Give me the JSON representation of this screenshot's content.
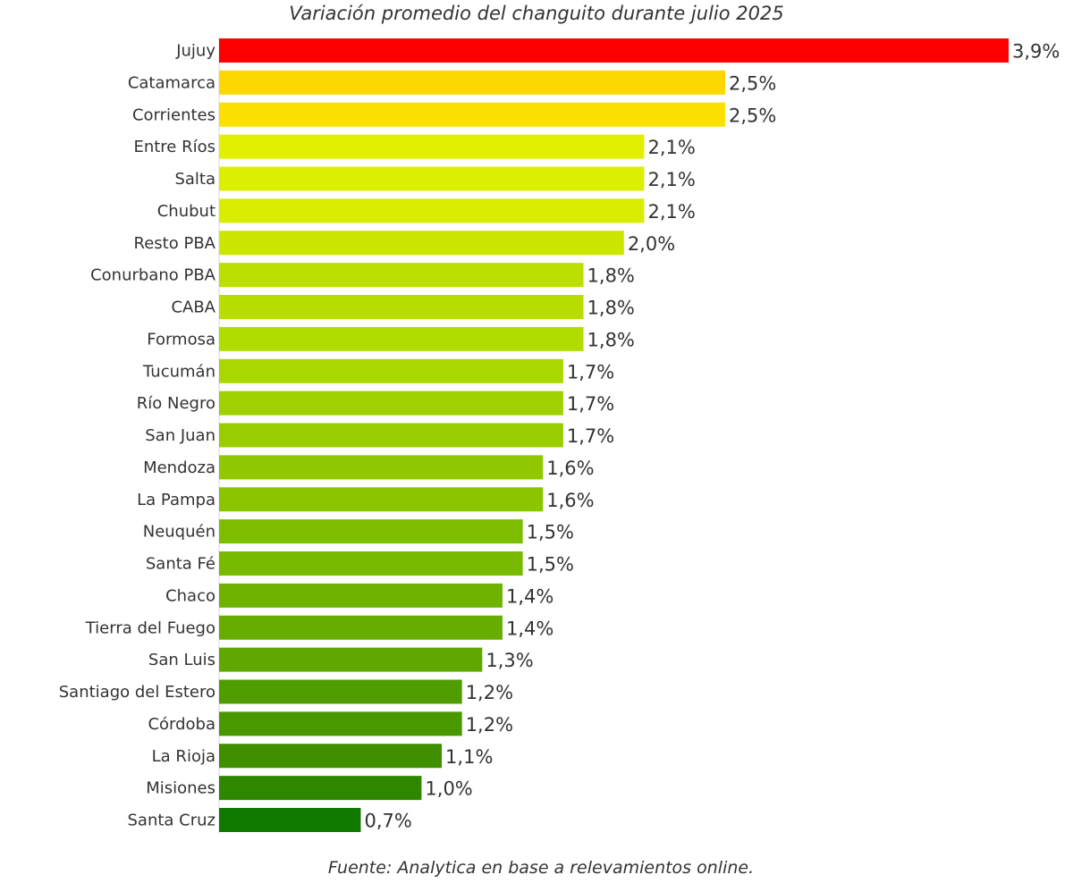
{
  "chart_data": {
    "type": "bar",
    "orientation": "horizontal",
    "title": "Variación promedio del changuito durante julio 2025",
    "source": "Fuente: Analytica en base a relevamientos online.",
    "xlim": [
      0,
      3.9
    ],
    "grid": false,
    "legend": "none",
    "categories": [
      "Jujuy",
      "Catamarca",
      "Corrientes",
      "Entre Ríos",
      "Salta",
      "Chubut",
      "Resto PBA",
      "Conurbano PBA",
      "CABA",
      "Formosa",
      "Tucumán",
      "Río Negro",
      "San Juan",
      "Mendoza",
      "La Pampa",
      "Neuquén",
      "Santa Fé",
      "Chaco",
      "Tierra del Fuego",
      "San Luis",
      "Santiago del Estero",
      "Córdoba",
      "La Rioja",
      "Misiones",
      "Santa Cruz"
    ],
    "values": [
      3.9,
      2.5,
      2.5,
      2.1,
      2.1,
      2.1,
      2.0,
      1.8,
      1.8,
      1.8,
      1.7,
      1.7,
      1.7,
      1.6,
      1.6,
      1.5,
      1.5,
      1.4,
      1.4,
      1.3,
      1.2,
      1.2,
      1.1,
      1.0,
      0.7
    ],
    "value_labels": [
      "3,9%",
      "2,5%",
      "2,5%",
      "2,1%",
      "2,1%",
      "2,1%",
      "2,0%",
      "1,8%",
      "1,8%",
      "1,8%",
      "1,7%",
      "1,7%",
      "1,7%",
      "1,6%",
      "1,6%",
      "1,5%",
      "1,5%",
      "1,4%",
      "1,4%",
      "1,3%",
      "1,2%",
      "1,2%",
      "1,1%",
      "1,0%",
      "0,7%"
    ],
    "colors": [
      "#fe0000",
      "#fdd800",
      "#fce100",
      "#e2ef00",
      "#dcef00",
      "#d8ed00",
      "#cbe700",
      "#bbe000",
      "#b7de00",
      "#b1dc00",
      "#a9d700",
      "#9fd100",
      "#9acd00",
      "#8fc700",
      "#8bc500",
      "#7cbd00",
      "#77ba00",
      "#6fb300",
      "#66ad00",
      "#60a700",
      "#4f9d00",
      "#4a9800",
      "#3f8f00",
      "#2f8700",
      "#127900"
    ]
  }
}
